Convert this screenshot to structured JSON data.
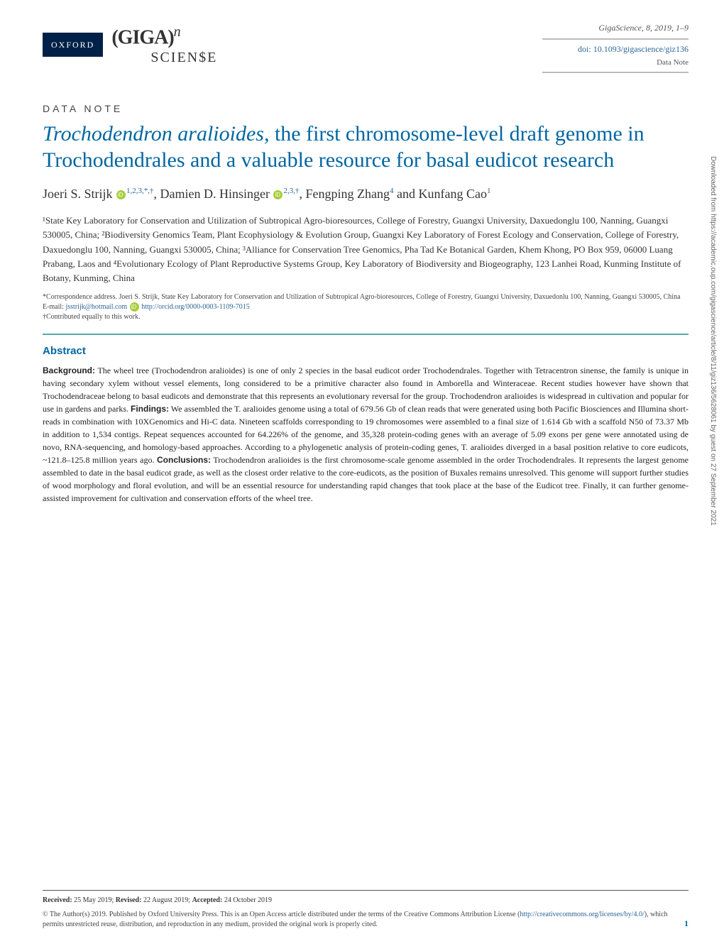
{
  "journal": {
    "oxford_label": "OXFORD",
    "citation": "GigaScience, 8, 2019, 1–9",
    "doi_label": "doi: 10.1093/gigascience/giz136",
    "doi_url": "10.1093/gigascience/giz136",
    "type_label": "Data Note"
  },
  "section_label": "DATA NOTE",
  "title_html": "<em>Trochodendron aralioides,</em> the first chromosome-level draft genome in Trochodendrales and a valuable resource for basal eudicot research",
  "authors": {
    "a1_name": "Joeri S. Strijk",
    "a1_aff": "1,2,3,*,†",
    "a2_name": "Damien D. Hinsinger",
    "a2_aff": "2,3,†",
    "a3_name": "Fengping Zhang",
    "a3_aff": "4",
    "a4_name": "Kunfang Cao",
    "a4_aff": "1"
  },
  "affiliations_text": "¹State Key Laboratory for Conservation and Utilization of Subtropical Agro-bioresources, College of Forestry, Guangxi University, Daxuedonglu 100, Nanning, Guangxi 530005, China; ²Biodiversity Genomics Team, Plant Ecophysiology & Evolution Group, Guangxi Key Laboratory of Forest Ecology and Conservation, College of Forestry, Daxuedonglu 100, Nanning, Guangxi 530005, China; ³Alliance for Conservation Tree Genomics, Pha Tad Ke Botanical Garden, Khem Khong, PO Box 959, 06000 Luang Prabang, Laos and ⁴Evolutionary Ecology of Plant Reproductive Systems Group, Key Laboratory of Biodiversity and Biogeography, 123 Lanhei Road, Kunming Institute of Botany, Kunming, China",
  "correspondence": {
    "text_prefix": "*Correspondence address. Joeri S. Strijk, State Key Laboratory for Conservation and Utilization of Subtropical Agro-bioresources, College of Forestry, Guangxi University, Daxuedonlu 100, Nanning, Guangxi 530005, China E-mail: ",
    "email": "jsstrijk@hotmail.com",
    "orcid_url": "http://orcid.org/0000-0003-1109-7015",
    "contrib_note": "†Contributed equally to this work."
  },
  "abstract": {
    "heading": "Abstract",
    "background_label": "Background:",
    "background_text": " The wheel tree (Trochodendron aralioides) is one of only 2 species in the basal eudicot order Trochodendrales. Together with Tetracentron sinense, the family is unique in having secondary xylem without vessel elements, long considered to be a primitive character also found in Amborella and Winteraceae. Recent studies however have shown that Trochodendraceae belong to basal eudicots and demonstrate that this represents an evolutionary reversal for the group. Trochodendron aralioides is widespread in cultivation and popular for use in gardens and parks. ",
    "findings_label": "Findings:",
    "findings_text": " We assembled the T. aralioides genome using a total of 679.56 Gb of clean reads that were generated using both Pacific Biosciences and Illumina short-reads in combination with 10XGenomics and Hi-C data. Nineteen scaffolds corresponding to 19 chromosomes were assembled to a final size of 1.614 Gb with a scaffold N50 of 73.37 Mb in addition to 1,534 contigs. Repeat sequences accounted for 64.226% of the genome, and 35,328 protein-coding genes with an average of 5.09 exons per gene were annotated using de novo, RNA-sequencing, and homology-based approaches. According to a phylogenetic analysis of protein-coding genes, T. aralioides diverged in a basal position relative to core eudicots, ~121.8–125.8 million years ago. ",
    "conclusions_label": "Conclusions:",
    "conclusions_text": " Trochodendron aralioides is the first chromosome-scale genome assembled in the order Trochodendrales. It represents the largest genome assembled to date in the basal eudicot grade, as well as the closest order relative to the core-eudicots, as the position of Buxales remains unresolved. This genome will support further studies of wood morphology and floral evolution, and will be an essential resource for understanding rapid changes that took place at the base of the Eudicot tree. Finally, it can further genome-assisted improvement for cultivation and conservation efforts of the wheel tree."
  },
  "footer": {
    "received_label": "Received:",
    "received_date": " 25 May 2019; ",
    "revised_label": "Revised:",
    "revised_date": " 22 August 2019; ",
    "accepted_label": "Accepted:",
    "accepted_date": " 24 October 2019",
    "license_text_pre": "© The Author(s) 2019. Published by Oxford University Press. This is an Open Access article distributed under the terms of the Creative Commons Attribution License (",
    "license_url": "http://creativecommons.org/licenses/by/4.0/",
    "license_text_post": "), which permits unrestricted reuse, distribution, and reproduction in any medium, provided the original work is properly cited."
  },
  "page_number": "1",
  "sidebar_download_text": "Downloaded from https://academic.oup.com/gigascience/article/8/11/giz136/5628061 by guest on 27 September 2021",
  "colors": {
    "oxford_bg": "#002147",
    "title_blue": "#0066a1",
    "link_blue": "#2a6496",
    "teal_rule": "#5aa8a8",
    "orcid_green": "#a6ce39"
  }
}
